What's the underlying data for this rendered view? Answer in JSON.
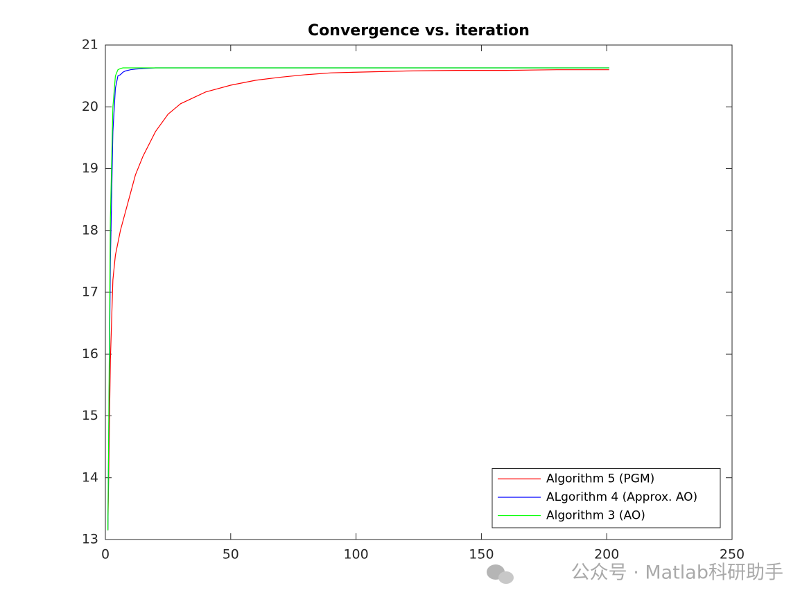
{
  "chart_data": {
    "type": "line",
    "title": "Convergence vs. iteration",
    "x": [
      1,
      2,
      3,
      4,
      5,
      6,
      7,
      8,
      10,
      12,
      15,
      20,
      25,
      30,
      40,
      50,
      60,
      70,
      80,
      90,
      100,
      120,
      140,
      160,
      180,
      201
    ],
    "series": [
      {
        "name": "Algorithm 5 (PGM)",
        "color": "#ff0000",
        "values": [
          13.15,
          15.9,
          17.2,
          17.6,
          17.8,
          18.0,
          18.15,
          18.3,
          18.6,
          18.9,
          19.2,
          19.6,
          19.88,
          20.05,
          20.24,
          20.35,
          20.43,
          20.48,
          20.52,
          20.55,
          20.56,
          20.58,
          20.59,
          20.59,
          20.6,
          20.6
        ]
      },
      {
        "name": "ALgorithm 4 (Approx. AO)",
        "color": "#0000ff",
        "values": [
          13.15,
          17.5,
          19.6,
          20.3,
          20.5,
          20.52,
          20.56,
          20.58,
          20.6,
          20.61,
          20.62,
          20.63,
          20.63,
          20.63,
          20.63,
          20.63,
          20.63,
          20.63,
          20.63,
          20.63,
          20.63,
          20.63,
          20.63,
          20.63,
          20.63,
          20.63
        ]
      },
      {
        "name": "Algorithm 3 (AO)",
        "color": "#00ff00",
        "values": [
          13.15,
          18.2,
          20.0,
          20.5,
          20.6,
          20.62,
          20.63,
          20.63,
          20.63,
          20.63,
          20.63,
          20.63,
          20.63,
          20.63,
          20.63,
          20.63,
          20.63,
          20.63,
          20.63,
          20.63,
          20.63,
          20.63,
          20.63,
          20.63,
          20.63,
          20.63
        ]
      }
    ],
    "xlim": [
      0,
      250
    ],
    "xticks": [
      0,
      50,
      100,
      150,
      200,
      250
    ],
    "ylim": [
      13,
      21
    ],
    "yticks": [
      13,
      14,
      15,
      16,
      17,
      18,
      19,
      20,
      21
    ],
    "legend": "southeast"
  },
  "watermark": "公众号 · Matlab科研助手"
}
